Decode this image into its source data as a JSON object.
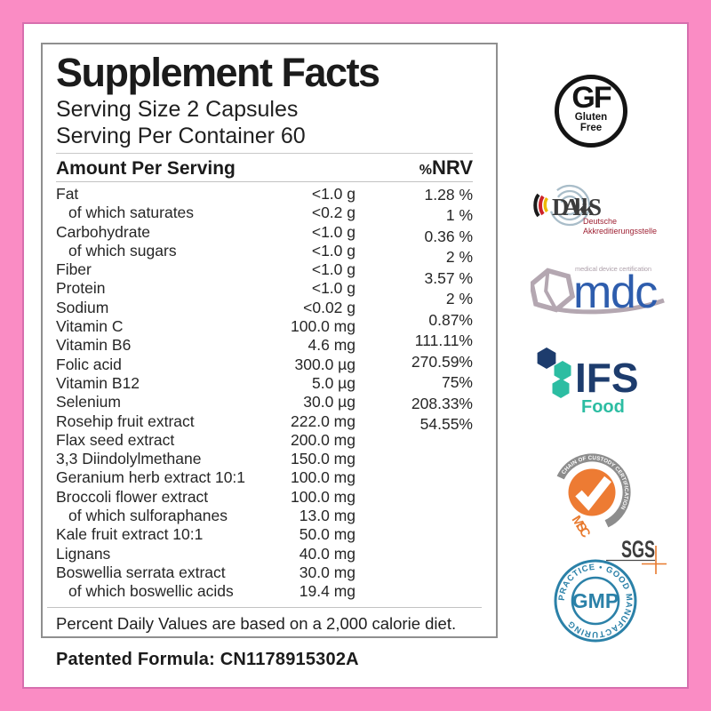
{
  "colors": {
    "frame_pink": "#fa8cc4",
    "frame_line": "#d76fae",
    "box_border": "#8f8f8f",
    "ifs_navy": "#1d3c6d",
    "ifs_teal": "#2cbda2",
    "gmp_blue": "#2b81a8",
    "msc_orange": "#ed7b33",
    "dakks_red": "#9e2133",
    "mdc_blue": "#2e5dad"
  },
  "label": {
    "title": "Supplement Facts",
    "serving_size": "Serving Size 2 Capsules",
    "servings_per_container": "Serving Per Container 60",
    "column_header": "Amount Per Serving",
    "nrv_percent_sign": "%",
    "nrv_header": "NRV",
    "rows": [
      {
        "name": "Fat",
        "amount": "<1.0 g",
        "indent": false
      },
      {
        "name": "of which saturates",
        "amount": "<0.2 g",
        "indent": true
      },
      {
        "name": "Carbohydrate",
        "amount": "<1.0 g",
        "indent": false
      },
      {
        "name": "of which sugars",
        "amount": "<1.0 g",
        "indent": true
      },
      {
        "name": "Fiber",
        "amount": "<1.0 g",
        "indent": false
      },
      {
        "name": "Protein",
        "amount": "<1.0 g",
        "indent": false
      },
      {
        "name": "Sodium",
        "amount": "<0.02 g",
        "indent": false
      },
      {
        "name": "Vitamin C",
        "amount": "100.0 mg",
        "indent": false
      },
      {
        "name": "Vitamin B6",
        "amount": "4.6 mg",
        "indent": false
      },
      {
        "name": "Folic acid",
        "amount": "300.0 µg",
        "indent": false
      },
      {
        "name": "Vitamin B12",
        "amount": "5.0 µg",
        "indent": false
      },
      {
        "name": "Selenium",
        "amount": "30.0 µg",
        "indent": false
      },
      {
        "name": "Rosehip fruit extract",
        "amount": "222.0 mg",
        "indent": false
      },
      {
        "name": "Flax seed extract",
        "amount": "200.0 mg",
        "indent": false
      },
      {
        "name": "3,3 Diindolylmethane",
        "amount": "150.0 mg",
        "indent": false
      },
      {
        "name": "Geranium herb extract 10:1",
        "amount": "100.0 mg",
        "indent": false
      },
      {
        "name": "Broccoli flower extract",
        "amount": "100.0 mg",
        "indent": false
      },
      {
        "name": "of which sulforaphanes",
        "amount": "13.0 mg",
        "indent": true
      },
      {
        "name": "Kale fruit extract 10:1",
        "amount": "50.0 mg",
        "indent": false
      },
      {
        "name": "Lignans",
        "amount": "40.0 mg",
        "indent": false
      },
      {
        "name": "Boswellia serrata extract",
        "amount": "30.0 mg",
        "indent": false
      },
      {
        "name": "of which boswellic acids",
        "amount": "19.4 mg",
        "indent": true
      }
    ],
    "nrv_values": [
      "1.28 %",
      "1 %",
      "0.36 %",
      "2 %",
      "3.57 %",
      "2 %",
      "0.87%",
      "111.11%",
      "270.59%",
      "75%",
      "208.33%",
      "54.55%"
    ],
    "footnote": "Percent Daily Values are based on a 2,000 calorie diet.",
    "patent": "Patented Formula: CN1178915302A"
  },
  "badges": {
    "gluten_free": {
      "initials": "GF",
      "word1": "Gluten",
      "word2": "Free"
    },
    "dakks": {
      "wordmark": "DAkkS",
      "subtitle_line1": "Deutsche",
      "subtitle_line2": "Akkreditierungsstelle"
    },
    "mdc": {
      "wordmark": "mdc",
      "tagline": "medical device certification"
    },
    "ifs": {
      "wordmark": "IFS",
      "category": "Food"
    },
    "msc": {
      "arc_text": "CHAIN OF CUSTODY CERTIFICATION",
      "org": "MSC",
      "certifier": "SGS"
    },
    "gmp": {
      "ring_text": "PRACTICE • GOOD MANUFACTURING",
      "center": "GMP"
    }
  }
}
